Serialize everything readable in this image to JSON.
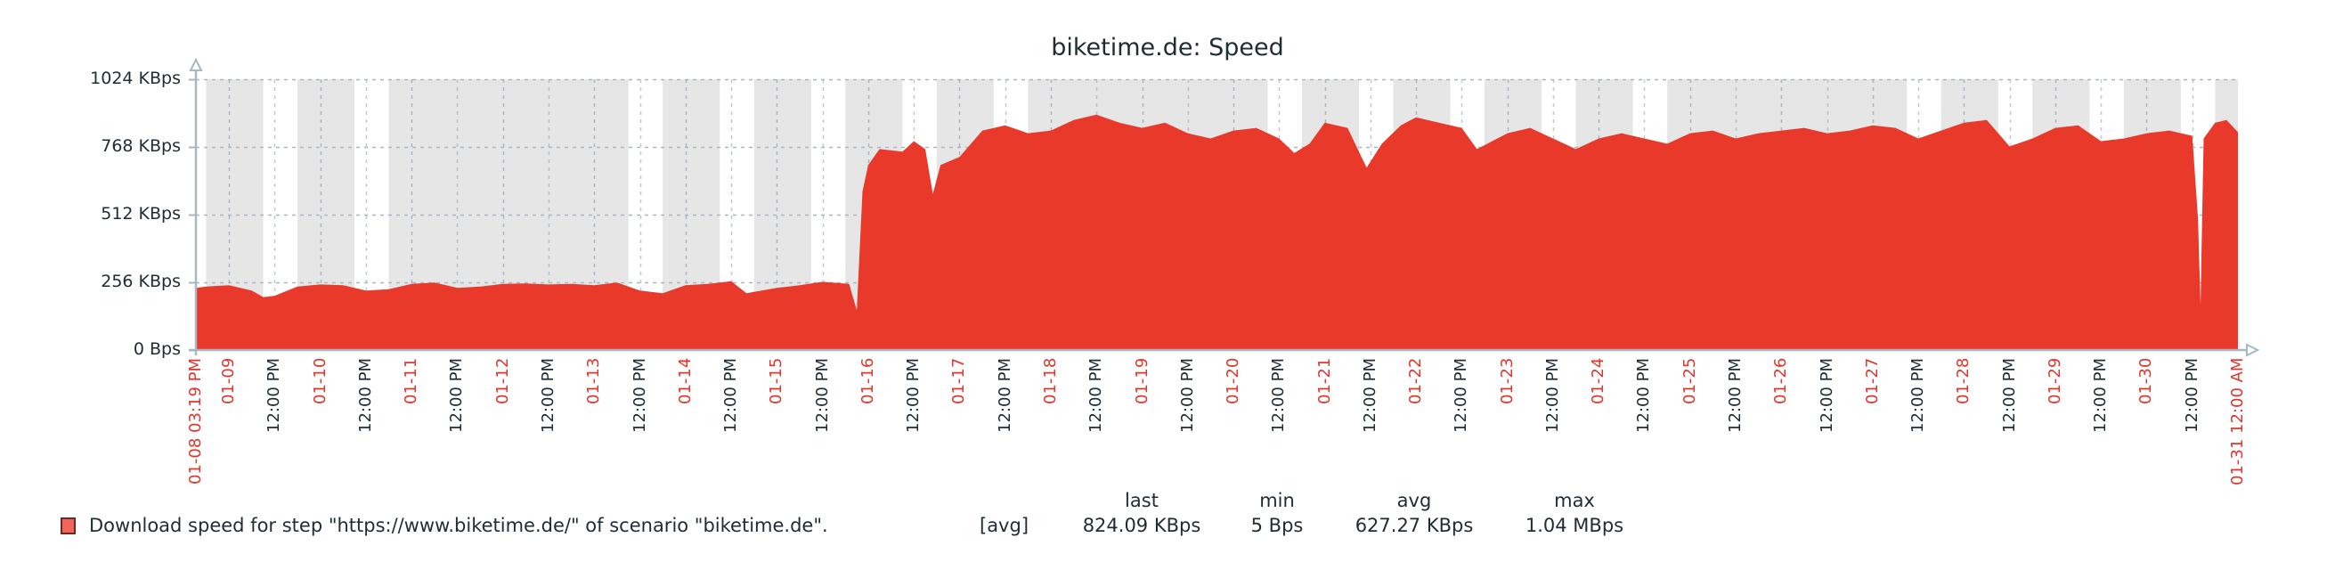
{
  "chart_data": {
    "type": "area",
    "title": "biketime.de: Speed",
    "xlabel": "",
    "ylabel": "",
    "x_range": [
      "01-08 15:19",
      "01-31 00:00"
    ],
    "ylim": [
      0,
      1024
    ],
    "y_unit": "KBps",
    "y_ticks": [
      {
        "value": 0,
        "label": "0 Bps"
      },
      {
        "value": 256,
        "label": "256 KBps"
      },
      {
        "value": 512,
        "label": "512 KBps"
      },
      {
        "value": 768,
        "label": "768 KBps"
      },
      {
        "value": 1024,
        "label": "1024 KBps"
      }
    ],
    "x_ticks": [
      {
        "t": "01-08 15:19",
        "label": "01-08 03:19 PM",
        "kind": "date"
      },
      {
        "t": "01-09 00:00",
        "label": "01-09",
        "kind": "date"
      },
      {
        "t": "01-09 12:00",
        "label": "12:00 PM",
        "kind": "time"
      },
      {
        "t": "01-10 00:00",
        "label": "01-10",
        "kind": "date"
      },
      {
        "t": "01-10 12:00",
        "label": "12:00 PM",
        "kind": "time"
      },
      {
        "t": "01-11 00:00",
        "label": "01-11",
        "kind": "date"
      },
      {
        "t": "01-11 12:00",
        "label": "12:00 PM",
        "kind": "time"
      },
      {
        "t": "01-12 00:00",
        "label": "01-12",
        "kind": "date"
      },
      {
        "t": "01-12 12:00",
        "label": "12:00 PM",
        "kind": "time"
      },
      {
        "t": "01-13 00:00",
        "label": "01-13",
        "kind": "date"
      },
      {
        "t": "01-13 12:00",
        "label": "12:00 PM",
        "kind": "time"
      },
      {
        "t": "01-14 00:00",
        "label": "01-14",
        "kind": "date"
      },
      {
        "t": "01-14 12:00",
        "label": "12:00 PM",
        "kind": "time"
      },
      {
        "t": "01-15 00:00",
        "label": "01-15",
        "kind": "date"
      },
      {
        "t": "01-15 12:00",
        "label": "12:00 PM",
        "kind": "time"
      },
      {
        "t": "01-16 00:00",
        "label": "01-16",
        "kind": "date"
      },
      {
        "t": "01-16 12:00",
        "label": "12:00 PM",
        "kind": "time"
      },
      {
        "t": "01-17 00:00",
        "label": "01-17",
        "kind": "date"
      },
      {
        "t": "01-17 12:00",
        "label": "12:00 PM",
        "kind": "time"
      },
      {
        "t": "01-18 00:00",
        "label": "01-18",
        "kind": "date"
      },
      {
        "t": "01-18 12:00",
        "label": "12:00 PM",
        "kind": "time"
      },
      {
        "t": "01-19 00:00",
        "label": "01-19",
        "kind": "date"
      },
      {
        "t": "01-19 12:00",
        "label": "12:00 PM",
        "kind": "time"
      },
      {
        "t": "01-20 00:00",
        "label": "01-20",
        "kind": "date"
      },
      {
        "t": "01-20 12:00",
        "label": "12:00 PM",
        "kind": "time"
      },
      {
        "t": "01-21 00:00",
        "label": "01-21",
        "kind": "date"
      },
      {
        "t": "01-21 12:00",
        "label": "12:00 PM",
        "kind": "time"
      },
      {
        "t": "01-22 00:00",
        "label": "01-22",
        "kind": "date"
      },
      {
        "t": "01-22 12:00",
        "label": "12:00 PM",
        "kind": "time"
      },
      {
        "t": "01-23 00:00",
        "label": "01-23",
        "kind": "date"
      },
      {
        "t": "01-23 12:00",
        "label": "12:00 PM",
        "kind": "time"
      },
      {
        "t": "01-24 00:00",
        "label": "01-24",
        "kind": "date"
      },
      {
        "t": "01-24 12:00",
        "label": "12:00 PM",
        "kind": "time"
      },
      {
        "t": "01-25 00:00",
        "label": "01-25",
        "kind": "date"
      },
      {
        "t": "01-25 12:00",
        "label": "12:00 PM",
        "kind": "time"
      },
      {
        "t": "01-26 00:00",
        "label": "01-26",
        "kind": "date"
      },
      {
        "t": "01-26 12:00",
        "label": "12:00 PM",
        "kind": "time"
      },
      {
        "t": "01-27 00:00",
        "label": "01-27",
        "kind": "date"
      },
      {
        "t": "01-27 12:00",
        "label": "12:00 PM",
        "kind": "time"
      },
      {
        "t": "01-28 00:00",
        "label": "01-28",
        "kind": "date"
      },
      {
        "t": "01-28 12:00",
        "label": "12:00 PM",
        "kind": "time"
      },
      {
        "t": "01-29 00:00",
        "label": "01-29",
        "kind": "date"
      },
      {
        "t": "01-29 12:00",
        "label": "12:00 PM",
        "kind": "time"
      },
      {
        "t": "01-30 00:00",
        "label": "01-30",
        "kind": "date"
      },
      {
        "t": "01-30 12:00",
        "label": "12:00 PM",
        "kind": "time"
      },
      {
        "t": "01-31 00:00",
        "label": "01-31 12:00 AM",
        "kind": "date"
      }
    ],
    "working_time_bands": [
      [
        "01-08 15:19",
        "01-08 18:00"
      ],
      [
        "01-09 09:00",
        "01-09 18:00"
      ],
      [
        "01-10 09:00",
        "01-10 18:00"
      ],
      [
        "01-13 09:00",
        "01-13 18:00"
      ],
      [
        "01-14 09:00",
        "01-14 18:00"
      ],
      [
        "01-15 09:00",
        "01-15 18:00"
      ],
      [
        "01-16 09:00",
        "01-16 18:00"
      ],
      [
        "01-17 09:00",
        "01-17 18:00"
      ],
      [
        "01-20 09:00",
        "01-20 18:00"
      ],
      [
        "01-21 09:00",
        "01-21 18:00"
      ],
      [
        "01-22 09:00",
        "01-22 18:00"
      ],
      [
        "01-23 09:00",
        "01-23 18:00"
      ],
      [
        "01-24 09:00",
        "01-24 18:00"
      ],
      [
        "01-27 09:00",
        "01-27 18:00"
      ],
      [
        "01-28 09:00",
        "01-28 18:00"
      ],
      [
        "01-29 09:00",
        "01-29 18:00"
      ],
      [
        "01-30 09:00",
        "01-30 18:00"
      ]
    ],
    "series": [
      {
        "name": "Download speed for step \"https://www.biketime.de/\" of scenario \"biketime.de\".",
        "color": "#e8392a",
        "x": [
          "01-08 15:19",
          "01-08 18:00",
          "01-09 00:00",
          "01-09 06:00",
          "01-09 09:00",
          "01-09 12:00",
          "01-09 18:00",
          "01-10 00:00",
          "01-10 06:00",
          "01-10 12:00",
          "01-10 18:00",
          "01-11 00:00",
          "01-11 06:00",
          "01-11 12:00",
          "01-11 18:00",
          "01-12 00:00",
          "01-12 06:00",
          "01-12 12:00",
          "01-12 18:00",
          "01-13 00:00",
          "01-13 06:00",
          "01-13 12:00",
          "01-13 18:00",
          "01-14 00:00",
          "01-14 06:00",
          "01-14 12:00",
          "01-14 16:00",
          "01-14 20:00",
          "01-15 00:00",
          "01-15 06:00",
          "01-15 12:00",
          "01-15 19:00",
          "01-15 21:00",
          "01-15 22:30",
          "01-16 00:00",
          "01-16 03:00",
          "01-16 09:00",
          "01-16 12:00",
          "01-16 15:00",
          "01-16 17:00",
          "01-16 19:00",
          "01-17 00:00",
          "01-17 06:00",
          "01-17 12:00",
          "01-17 18:00",
          "01-18 00:00",
          "01-18 06:00",
          "01-18 12:00",
          "01-18 18:00",
          "01-19 00:00",
          "01-19 06:00",
          "01-19 12:00",
          "01-19 18:00",
          "01-20 00:00",
          "01-20 06:00",
          "01-20 12:00",
          "01-20 16:00",
          "01-20 20:00",
          "01-21 00:00",
          "01-21 06:00",
          "01-21 11:00",
          "01-21 15:00",
          "01-21 20:00",
          "01-22 00:00",
          "01-22 06:00",
          "01-22 12:00",
          "01-22 16:00",
          "01-22 20:00",
          "01-23 00:00",
          "01-23 06:00",
          "01-23 12:00",
          "01-23 18:00",
          "01-24 00:00",
          "01-24 06:00",
          "01-24 12:00",
          "01-24 18:00",
          "01-25 00:00",
          "01-25 06:00",
          "01-25 12:00",
          "01-25 18:00",
          "01-26 00:00",
          "01-26 06:00",
          "01-26 12:00",
          "01-26 18:00",
          "01-27 00:00",
          "01-27 06:00",
          "01-27 12:00",
          "01-27 18:00",
          "01-28 00:00",
          "01-28 06:00",
          "01-28 12:00",
          "01-28 18:00",
          "01-29 00:00",
          "01-29 06:00",
          "01-29 12:00",
          "01-29 18:00",
          "01-30 00:00",
          "01-30 06:00",
          "01-30 12:00",
          "01-30 13:30",
          "01-30 14:10",
          "01-30 15:00",
          "01-30 18:00",
          "01-30 21:00",
          "01-31 00:00"
        ],
        "values": [
          235,
          240,
          245,
          225,
          200,
          205,
          240,
          248,
          245,
          225,
          230,
          250,
          255,
          235,
          240,
          250,
          252,
          248,
          250,
          245,
          255,
          225,
          215,
          245,
          250,
          260,
          215,
          225,
          235,
          245,
          258,
          250,
          150,
          600,
          700,
          760,
          750,
          790,
          760,
          590,
          700,
          730,
          830,
          850,
          820,
          830,
          870,
          890,
          860,
          840,
          860,
          820,
          800,
          830,
          840,
          800,
          745,
          780,
          860,
          840,
          690,
          780,
          850,
          880,
          860,
          840,
          760,
          790,
          820,
          840,
          800,
          760,
          800,
          820,
          800,
          780,
          820,
          830,
          800,
          820,
          830,
          840,
          820,
          830,
          850,
          840,
          800,
          830,
          860,
          870,
          770,
          800,
          840,
          850,
          790,
          800,
          820,
          830,
          810,
          500,
          170,
          800,
          860,
          870,
          824
        ]
      }
    ],
    "legend_position": "bottom-left"
  },
  "title": "biketime.de: Speed",
  "legend": {
    "items": [
      {
        "label": "Download speed for step \"https://www.biketime.de/\" of scenario \"biketime.de\".",
        "function": "[avg]",
        "swatch_color": "#f0665a",
        "last": "824.09 KBps",
        "min": "5 Bps",
        "avg": "627.27 KBps",
        "max": "1.04 MBps"
      }
    ],
    "headers": {
      "last": "last",
      "min": "min",
      "avg": "avg",
      "max": "max"
    }
  },
  "colors": {
    "area_fill": "#e8392a",
    "non_working_time": "#e6e6e6",
    "working_time": "#ffffff",
    "grid": "#a9b7c4",
    "axis": "#a9b7c4",
    "date_label": "#e0362c",
    "time_label": "#1f2c33"
  }
}
